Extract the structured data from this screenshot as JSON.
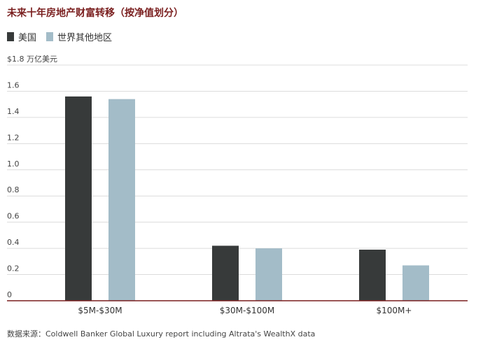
{
  "title": "未来十年房地产财富转移（按净值划分）",
  "legend": {
    "items": [
      {
        "label": "美国",
        "color": "#373a3a"
      },
      {
        "label": "世界其他地区",
        "color": "#a3bcc8"
      }
    ]
  },
  "source": "数据来源：Coldwell Banker Global Luxury report including Altrata's WealthX data",
  "chart_data": {
    "type": "bar",
    "title": "未来十年房地产财富转移（按净值划分）",
    "categories": [
      "$5M-$30M",
      "$30M-$100M",
      "$100M+"
    ],
    "series": [
      {
        "name": "美国",
        "values": [
          1.56,
          0.42,
          0.39
        ],
        "color": "#373a3a"
      },
      {
        "name": "世界其他地区",
        "values": [
          1.54,
          0.4,
          0.27
        ],
        "color": "#a3bcc8"
      }
    ],
    "ylabel": "万亿美元",
    "ylim": [
      0,
      1.8
    ],
    "yticks": [
      0,
      0.2,
      0.4,
      0.6,
      0.8,
      1.0,
      1.2,
      1.4,
      1.6,
      1.8
    ],
    "ytick_labels": [
      "0",
      "0.2",
      "0.4",
      "0.6",
      "0.8",
      "1.0",
      "1.2",
      "1.4",
      "1.6",
      "$1.8 万亿美元"
    ],
    "grid": true,
    "legend_position": "top-left",
    "axis_color": "#7a1f1f",
    "grid_color": "#dcdcdc"
  }
}
